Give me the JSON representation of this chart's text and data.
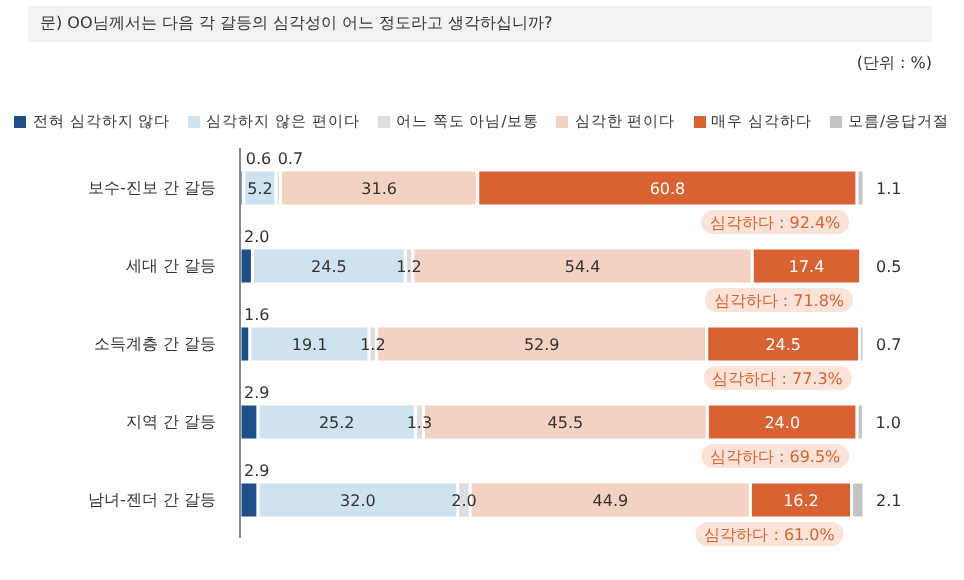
{
  "chart_data": {
    "type": "bar",
    "orientation": "horizontal",
    "stacked": true,
    "title": "문) OO님께서는 다음 각 갈등의 심각성이 어느 정도라고 생각하십니까?",
    "subtitle": "(단위 : %)",
    "categories": [
      "보수-진보 간 갈등",
      "세대 간 갈등",
      "소득계층 간 갈등",
      "지역 간 갈등",
      "남녀-젠더 간 갈등"
    ],
    "series": [
      {
        "name": "전혀 심각하지 않다",
        "color": "#1f4e8c",
        "values": [
          0.6,
          2.0,
          1.6,
          2.9,
          2.9
        ],
        "value_labels": [
          "0.6",
          "2.0",
          "1.6",
          "2.9",
          "2.9"
        ]
      },
      {
        "name": "심각하지 않은 편이다",
        "color": "#cfe2f0",
        "values": [
          5.2,
          24.5,
          19.1,
          25.2,
          32.0
        ],
        "value_labels": [
          "5.2",
          "24.5",
          "19.1",
          "25.2",
          "32.0"
        ]
      },
      {
        "name": "어느 쪽도 아님/보통",
        "color": "#dddddd",
        "values": [
          0.7,
          1.2,
          1.2,
          1.3,
          2.0
        ],
        "value_labels": [
          "0.7",
          "1.2",
          "1.2",
          "1.3",
          "2.0"
        ]
      },
      {
        "name": "심각한 편이다",
        "color": "#f4d2c2",
        "values": [
          31.6,
          54.4,
          52.9,
          45.5,
          44.9
        ],
        "value_labels": [
          "31.6",
          "54.4",
          "52.9",
          "45.5",
          "44.9"
        ]
      },
      {
        "name": "매우 심각하다",
        "color": "#d96232",
        "values": [
          60.8,
          17.4,
          24.5,
          24.0,
          16.2
        ],
        "value_labels": [
          "60.8",
          "17.4",
          "24.5",
          "24.0",
          "16.2"
        ]
      },
      {
        "name": "모름/응답거절",
        "color": "#c4c4c4",
        "values": [
          1.1,
          0.5,
          0.7,
          1.0,
          2.1
        ],
        "value_labels": [
          "1.1",
          "0.5",
          "0.7",
          "1.0",
          "2.1"
        ]
      }
    ],
    "xlim": [
      0,
      100
    ],
    "tick_labels": "y",
    "legend": "top",
    "grid": false,
    "annotations": [
      "심각하다 : 92.4%",
      "심각하다 : 71.8%",
      "심각하다 : 77.3%",
      "심각하다 : 69.5%",
      "심각하다 : 61.0%"
    ]
  }
}
